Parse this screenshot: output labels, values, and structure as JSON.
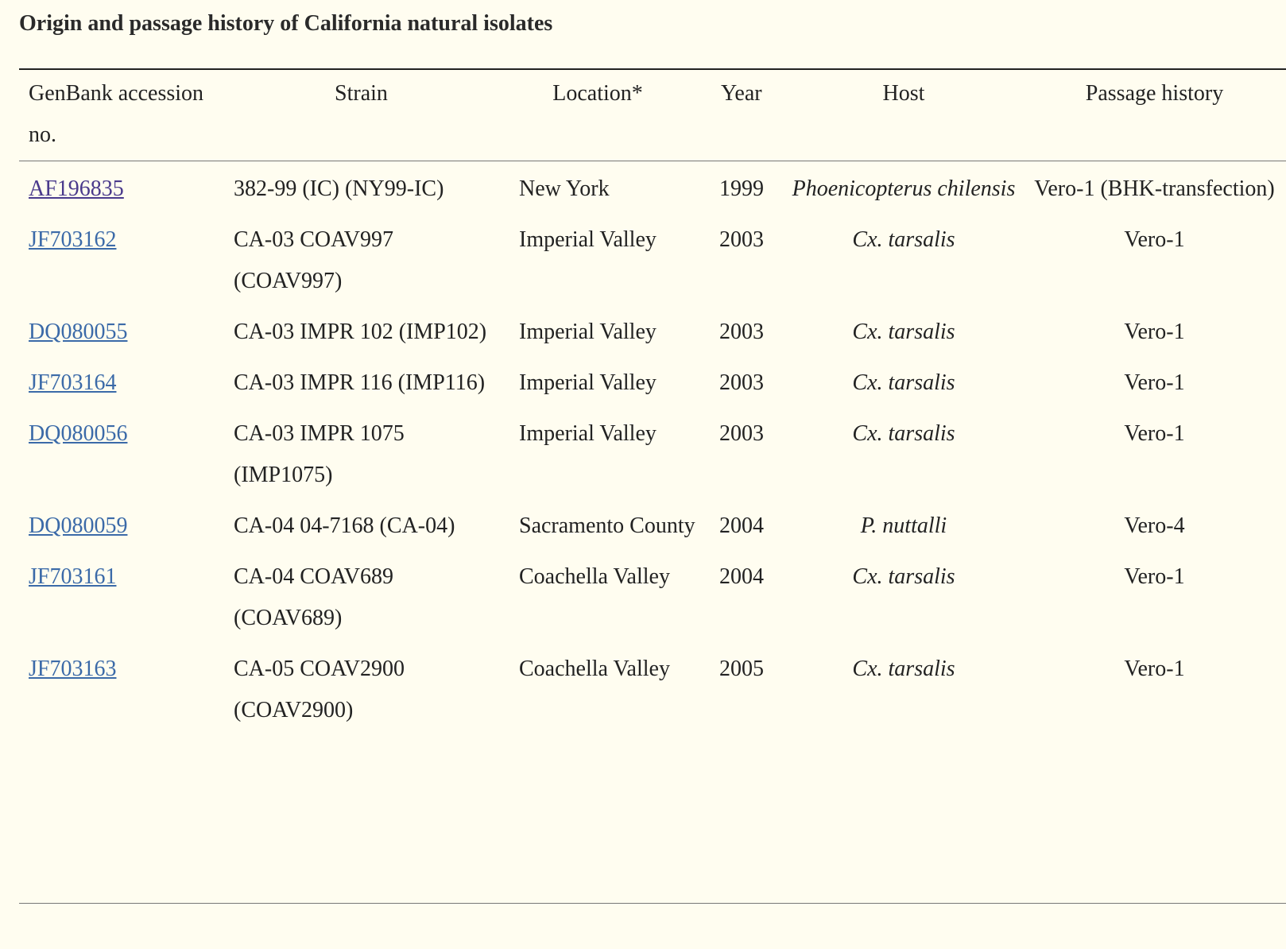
{
  "caption": "Origin and passage history of California natural isolates",
  "headers": {
    "accession": "GenBank accession no.",
    "strain": "Strain",
    "location": "Location*",
    "year": "Year",
    "host": "Host",
    "passage": "Passage history"
  },
  "rows": [
    {
      "accession": "AF196835",
      "strain": "382-99 (IC) (NY99-IC)",
      "location": "New York",
      "year": "1999",
      "host": "Phoenicopterus chilensis",
      "passage": "Vero-1 (BHK-transfection)"
    },
    {
      "accession": "JF703162",
      "strain": "CA-03 COAV997 (COAV997)",
      "location": "Imperial Valley",
      "year": "2003",
      "host": "Cx. tarsalis",
      "passage": "Vero-1"
    },
    {
      "accession": "DQ080055",
      "strain": "CA-03 IMPR 102 (IMP102)",
      "location": "Imperial Valley",
      "year": "2003",
      "host": "Cx. tarsalis",
      "passage": "Vero-1"
    },
    {
      "accession": "JF703164",
      "strain": "CA-03 IMPR 116 (IMP116)",
      "location": "Imperial Valley",
      "year": "2003",
      "host": "Cx. tarsalis",
      "passage": "Vero-1"
    },
    {
      "accession": "DQ080056",
      "strain": "CA-03 IMPR 1075 (IMP1075)",
      "location": "Imperial Valley",
      "year": "2003",
      "host": "Cx. tarsalis",
      "passage": "Vero-1"
    },
    {
      "accession": "DQ080059",
      "strain": "CA-04 04-7168 (CA-04)",
      "location": "Sacramento County",
      "year": "2004",
      "host": "P. nuttalli",
      "passage": "Vero-4"
    },
    {
      "accession": "JF703161",
      "strain": "CA-04 COAV689 (COAV689)",
      "location": "Coachella Valley",
      "year": "2004",
      "host": "Cx. tarsalis",
      "passage": "Vero-1"
    },
    {
      "accession": "JF703163",
      "strain": "CA-05 COAV2900 (COAV2900)",
      "location": "Coachella Valley",
      "year": "2005",
      "host": "Cx. tarsalis",
      "passage": "Vero-1"
    }
  ]
}
